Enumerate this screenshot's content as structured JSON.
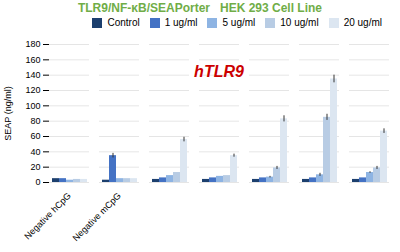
{
  "chart_data": {
    "type": "bar",
    "title": "TLR9/NF-κB/SEAPorter   HEK 293 Cell Line",
    "subtitle": "hTLR9",
    "ylabel": "SEAP (ng/ml)",
    "categories": [
      "Negative hCpG",
      "Negative mCpG",
      null,
      null,
      null,
      null,
      null
    ],
    "series": [
      {
        "name": "Control",
        "color": "#1c3f6e",
        "values": [
          5,
          3,
          4,
          4,
          4,
          4,
          4
        ],
        "errors": [
          0,
          0,
          0,
          0,
          0,
          0,
          0
        ]
      },
      {
        "name": "1 ug/ml",
        "color": "#4472c4",
        "values": [
          5,
          35,
          6,
          6,
          6,
          6,
          6
        ],
        "errors": [
          0,
          3,
          0,
          0,
          0,
          0,
          0
        ]
      },
      {
        "name": "5 ug/ml",
        "color": "#8eb4e3",
        "values": [
          3,
          5,
          9,
          8,
          7,
          10,
          13
        ],
        "errors": [
          0,
          0,
          0,
          0,
          1,
          2,
          1
        ]
      },
      {
        "name": "10 ug/ml",
        "color": "#b8cce4",
        "values": [
          4,
          5,
          13,
          9,
          19,
          85,
          19
        ],
        "errors": [
          0,
          0,
          0,
          0,
          2,
          4,
          2
        ]
      },
      {
        "name": "20 ug/ml",
        "color": "#dce6f1",
        "values": [
          4,
          5,
          56,
          35,
          83,
          135,
          67
        ],
        "errors": [
          0,
          0,
          3,
          2,
          4,
          5,
          3
        ]
      }
    ],
    "ylim": [
      0,
      180
    ],
    "yticks": [
      0,
      20,
      40,
      60,
      80,
      100,
      120,
      140,
      160,
      180
    ],
    "grid": true,
    "legend": "upper right"
  }
}
